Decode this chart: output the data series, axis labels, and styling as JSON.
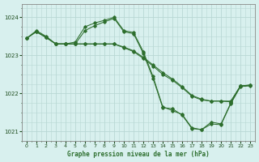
{
  "title": "Graphe pression niveau de la mer (hPa)",
  "background_color": "#d8f0ee",
  "plot_bg_color": "#d8f0ee",
  "grid_color": "#b8d8d4",
  "line_color": "#2d6e2d",
  "xlim": [
    -0.5,
    23.5
  ],
  "ylim": [
    1020.75,
    1024.35
  ],
  "yticks": [
    1021,
    1022,
    1023,
    1024
  ],
  "xticks": [
    0,
    1,
    2,
    3,
    4,
    5,
    6,
    7,
    8,
    9,
    10,
    11,
    12,
    13,
    14,
    15,
    16,
    17,
    18,
    19,
    20,
    21,
    22,
    23
  ],
  "series": [
    {
      "x": [
        0,
        1,
        2,
        3,
        4,
        5,
        6,
        7,
        8,
        9,
        10,
        11,
        12,
        13,
        14,
        15,
        16,
        17,
        18,
        19,
        20,
        21,
        22
      ],
      "y": [
        1023.45,
        1023.65,
        1023.5,
        1023.3,
        1023.3,
        1023.35,
        1023.75,
        1023.85,
        1023.92,
        1024.0,
        1023.65,
        1023.6,
        1023.1,
        1022.45,
        1021.65,
        1021.55,
        1021.45,
        1021.1,
        1021.05,
        1021.25,
        1021.2,
        1021.75,
        1022.2
      ]
    },
    {
      "x": [
        0,
        1,
        2,
        3,
        4,
        5,
        6,
        7,
        8,
        9,
        10,
        11,
        12,
        13,
        14,
        15,
        16,
        17,
        18,
        19,
        20,
        21,
        22,
        23
      ],
      "y": [
        1023.45,
        1023.62,
        1023.48,
        1023.3,
        1023.3,
        1023.3,
        1023.65,
        1023.78,
        1023.88,
        1023.97,
        1023.62,
        1023.57,
        1023.05,
        1022.4,
        1021.63,
        1021.6,
        1021.43,
        1021.08,
        1021.05,
        1021.2,
        1021.18,
        1021.73,
        1022.18,
        1022.2
      ]
    },
    {
      "x": [
        0,
        1,
        2,
        3,
        4,
        5,
        6,
        7,
        8,
        9,
        10,
        11,
        12,
        13,
        14,
        15,
        16,
        17,
        18,
        19,
        20,
        21,
        22,
        23
      ],
      "y": [
        1023.45,
        1023.62,
        1023.47,
        1023.3,
        1023.3,
        1023.3,
        1023.3,
        1023.3,
        1023.3,
        1023.3,
        1023.2,
        1023.1,
        1022.92,
        1022.72,
        1022.5,
        1022.35,
        1022.15,
        1021.93,
        1021.83,
        1021.8,
        1021.8,
        1021.78,
        1022.2,
        1022.22
      ]
    },
    {
      "x": [
        1,
        2,
        3,
        4,
        5,
        6,
        7,
        8,
        9,
        10,
        11,
        12,
        13,
        14,
        15,
        16,
        17,
        18,
        19,
        20,
        21,
        22,
        23
      ],
      "y": [
        1023.62,
        1023.47,
        1023.3,
        1023.3,
        1023.3,
        1023.3,
        1023.3,
        1023.3,
        1023.3,
        1023.22,
        1023.12,
        1022.95,
        1022.75,
        1022.55,
        1022.38,
        1022.18,
        1021.95,
        1021.85,
        1021.8,
        1021.8,
        1021.8,
        1022.2,
        1022.22
      ]
    }
  ]
}
